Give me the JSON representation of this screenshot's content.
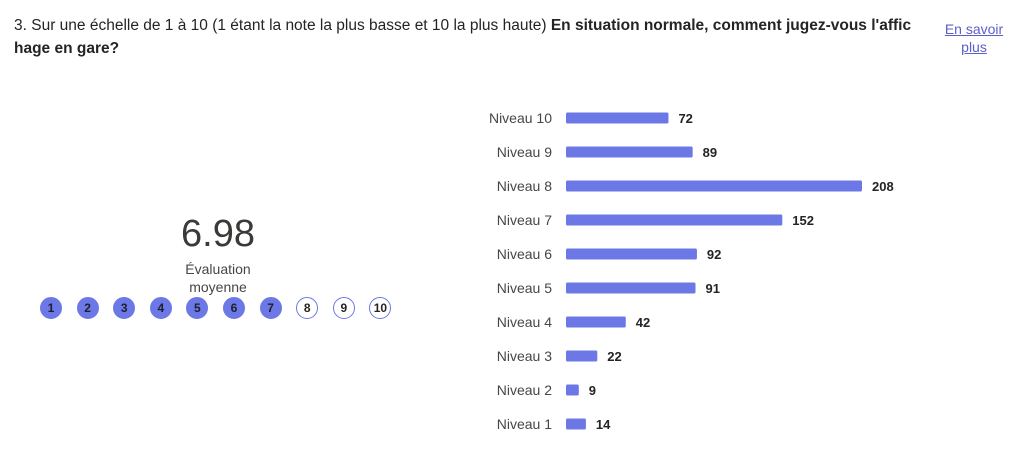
{
  "question": {
    "prefix": "3. Sur une échelle de 1 à 10 (1 étant la note la plus basse et 10 la plus haute) ",
    "bold": "En situation normale, comment jugez-vous l'affichage en gare?"
  },
  "learn_more": "En savoir plus",
  "score": {
    "value": "6.98",
    "label": "Évaluation moyenne"
  },
  "scale": {
    "items": [
      "1",
      "2",
      "3",
      "4",
      "5",
      "6",
      "7",
      "8",
      "9",
      "10"
    ],
    "filled_count": 7
  },
  "colors": {
    "bar": "#6b78e5",
    "accent": "#5b5fc7"
  },
  "chart_data": {
    "type": "bar",
    "orientation": "horizontal",
    "categories": [
      "Niveau 10",
      "Niveau 9",
      "Niveau 8",
      "Niveau 7",
      "Niveau 6",
      "Niveau 5",
      "Niveau 4",
      "Niveau 3",
      "Niveau 2",
      "Niveau 1"
    ],
    "values": [
      72,
      89,
      208,
      152,
      92,
      91,
      42,
      22,
      9,
      14
    ],
    "xlim": [
      0,
      208
    ],
    "grid": false,
    "legend": "none"
  }
}
